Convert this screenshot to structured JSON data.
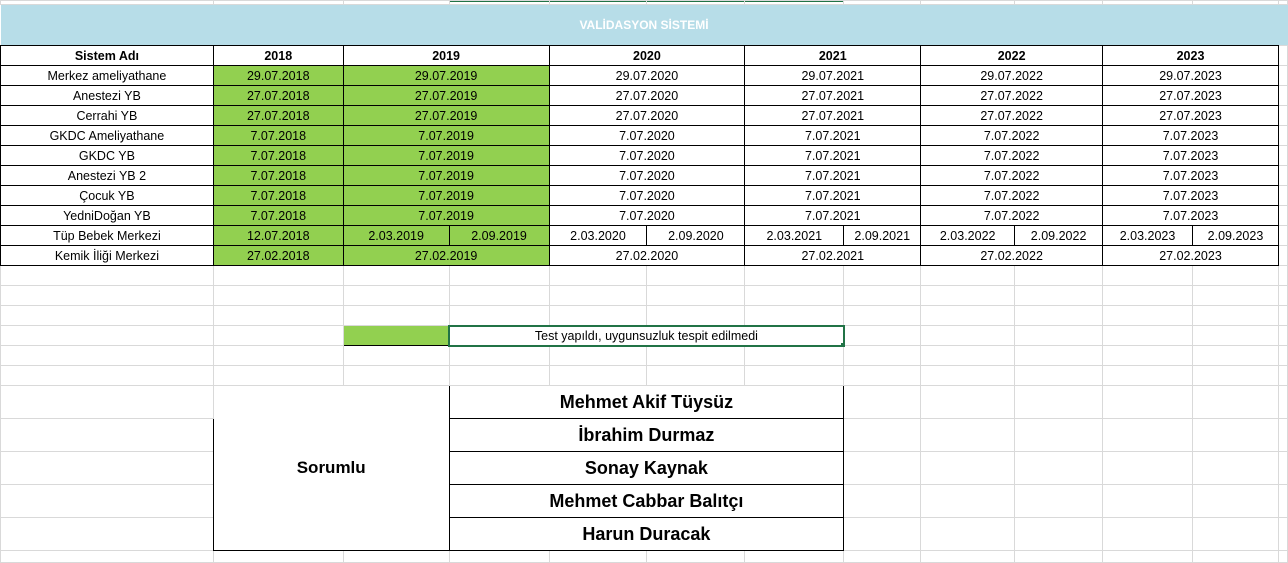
{
  "title": "VALİDASYON SİSTEMİ",
  "header": {
    "name_col": "Sistem Adı",
    "years": [
      "2018",
      "2019",
      "2020",
      "2021",
      "2022",
      "2023"
    ]
  },
  "rows": [
    {
      "name": "Merkez ameliyathane",
      "dates": [
        "29.07.2018",
        "29.07.2019",
        "29.07.2020",
        "29.07.2021",
        "29.07.2022",
        "29.07.2023"
      ]
    },
    {
      "name": "Anestezi YB",
      "dates": [
        "27.07.2018",
        "27.07.2019",
        "27.07.2020",
        "27.07.2021",
        "27.07.2022",
        "27.07.2023"
      ]
    },
    {
      "name": "Cerrahi YB",
      "dates": [
        "27.07.2018",
        "27.07.2019",
        "27.07.2020",
        "27.07.2021",
        "27.07.2022",
        "27.07.2023"
      ]
    },
    {
      "name": "GKDC Ameliyathane",
      "dates": [
        "7.07.2018",
        "7.07.2019",
        "7.07.2020",
        "7.07.2021",
        "7.07.2022",
        "7.07.2023"
      ]
    },
    {
      "name": "GKDC YB",
      "dates": [
        "7.07.2018",
        "7.07.2019",
        "7.07.2020",
        "7.07.2021",
        "7.07.2022",
        "7.07.2023"
      ]
    },
    {
      "name": "Anestezi YB 2",
      "dates": [
        "7.07.2018",
        "7.07.2019",
        "7.07.2020",
        "7.07.2021",
        "7.07.2022",
        "7.07.2023"
      ]
    },
    {
      "name": "Çocuk YB",
      "dates": [
        "7.07.2018",
        "7.07.2019",
        "7.07.2020",
        "7.07.2021",
        "7.07.2022",
        "7.07.2023"
      ]
    },
    {
      "name": "YedniDoğan YB",
      "dates": [
        "7.07.2018",
        "7.07.2019",
        "7.07.2020",
        "7.07.2021",
        "7.07.2022",
        "7.07.2023"
      ]
    },
    {
      "name": "Tüp Bebek Merkezi",
      "dates": [
        "12.07.2018",
        [
          "2.03.2019",
          "2.09.2019"
        ],
        [
          "2.03.2020",
          "2.09.2020"
        ],
        [
          "2.03.2021",
          "2.09.2021"
        ],
        [
          "2.03.2022",
          "2.09.2022"
        ],
        [
          "2.03.2023",
          "2.09.2023"
        ]
      ]
    },
    {
      "name": "Kemik İliği Merkezi",
      "dates": [
        "27.02.2018",
        "27.02.2019",
        "27.02.2020",
        "27.02.2021",
        "27.02.2022",
        "27.02.2023"
      ]
    }
  ],
  "legend": {
    "color": "#92d050",
    "text": "Test yapıldı, uygunsuzluk tespit edilmedi"
  },
  "responsible": {
    "label": "Sorumlu",
    "names": [
      "Mehmet Akif Tüysüz",
      "İbrahim Durmaz",
      "Sonay Kaynak",
      "Mehmet Cabbar Balıtçı",
      "Harun Duracak"
    ]
  }
}
